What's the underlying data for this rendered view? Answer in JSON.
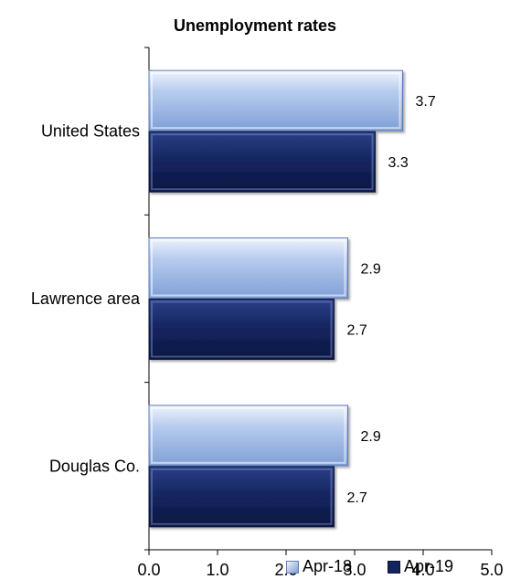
{
  "chart_data": {
    "type": "bar",
    "orientation": "horizontal",
    "title": "Unemployment rates",
    "categories": [
      "United States",
      "Lawrence area",
      "Douglas Co."
    ],
    "series": [
      {
        "name": "Apr-18",
        "values": [
          3.7,
          2.9,
          2.9
        ],
        "color": "#9bb7e6"
      },
      {
        "name": "Apr-19",
        "values": [
          3.3,
          2.7,
          2.7
        ],
        "color": "#14245e"
      }
    ],
    "xlim": [
      0,
      5
    ],
    "xticks": [
      "0.0",
      "1.0",
      "2.0",
      "3.0",
      "4.0",
      "5.0"
    ],
    "grid": false,
    "legend_position": "bottom-right"
  }
}
